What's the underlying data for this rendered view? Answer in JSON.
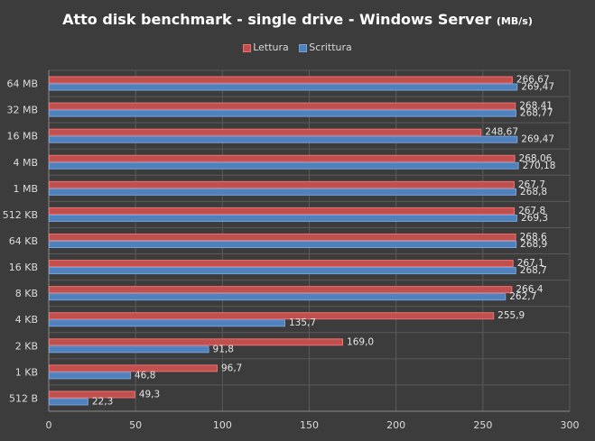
{
  "chart_data": {
    "type": "bar",
    "orientation": "horizontal",
    "title": "Atto disk benchmark - single drive - Windows Server",
    "title_unit": "(MB/s)",
    "categories": [
      "64 MB",
      "32 MB",
      "16 MB",
      "4 MB",
      "1 MB",
      "512 KB",
      "64 KB",
      "16 KB",
      "8 KB",
      "4 KB",
      "2 KB",
      "1 KB",
      "512 B"
    ],
    "series": [
      {
        "name": "Lettura",
        "color": "#c0504d",
        "values": [
          266.67,
          268.41,
          248.67,
          268.06,
          267.7,
          267.8,
          268.6,
          267.1,
          266.4,
          255.9,
          169.0,
          96.7,
          49.3
        ],
        "labels": [
          "266,67",
          "268,41",
          "248,67",
          "268,06",
          "267,7",
          "267,8",
          "268,6",
          "267,1",
          "266,4",
          "255,9",
          "169,0",
          "96,7",
          "49,3"
        ]
      },
      {
        "name": "Scrittura",
        "color": "#4f81bd",
        "values": [
          269.47,
          268.77,
          269.47,
          270.18,
          268.8,
          269.3,
          268.9,
          268.7,
          262.7,
          135.7,
          91.8,
          46.8,
          22.3
        ],
        "labels": [
          "269,47",
          "268,77",
          "269,47",
          "270,18",
          "268,8",
          "269,3",
          "268,9",
          "268,7",
          "262,7",
          "135,7",
          "91,8",
          "46,8",
          "22,3"
        ]
      }
    ],
    "xlim": [
      0,
      300
    ],
    "xticks": [
      0,
      50,
      100,
      150,
      200,
      250,
      300
    ],
    "xlabel": "",
    "ylabel": "",
    "grid": true,
    "legend": "top-center"
  }
}
